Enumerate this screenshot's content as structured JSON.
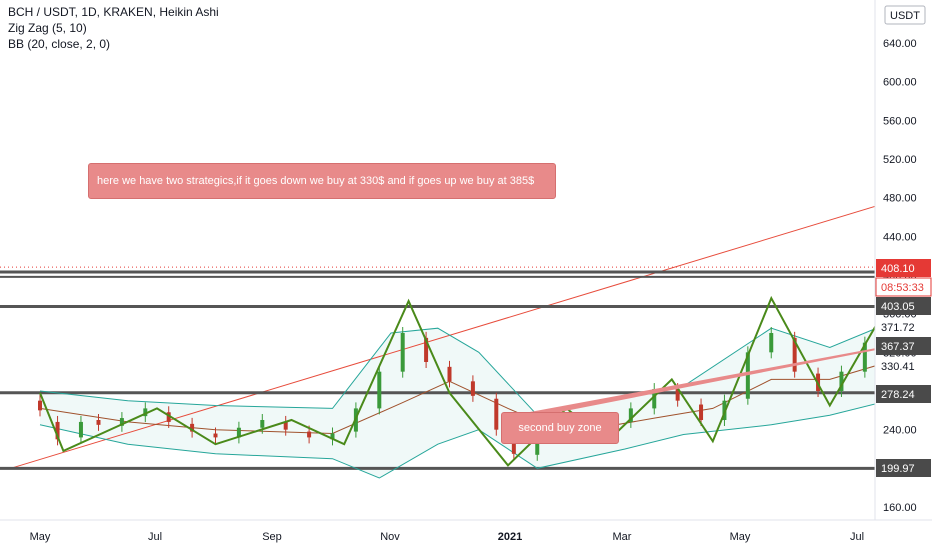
{
  "legend": {
    "line1": "BCH / USDT, 1D, KRAKEN, Heikin Ashi",
    "line2": "Zig Zag (5, 10)",
    "line3": "BB (20, close, 2, 0)"
  },
  "currency_badge": "USDT",
  "annotations": {
    "strategy_note": "here we have two strategics,if it goes down we buy at 330$ and if goes up we buy at 385$",
    "second_buy": "second buy zone"
  },
  "colors": {
    "candle_up": "#3a9a3a",
    "candle_down": "#c0392b",
    "zigzag": "#4a8a1a",
    "bb_band": "#26a69a",
    "bb_basis": "#a0522d",
    "fork_median": "#e74c3c",
    "fork_green": "#4caf50",
    "fork_blue": "#2196f3",
    "projection": "#1e8fbf",
    "support": "#555555",
    "price_badge": "#e53935"
  },
  "chart_data": {
    "type": "candlestick",
    "symbol": "BCH / USDT",
    "interval": "1D",
    "exchange": "KRAKEN",
    "style": "Heikin Ashi",
    "y_range": [
      150,
      650
    ],
    "x_labels": [
      "May",
      "Jul",
      "Sep",
      "Nov",
      "2021",
      "Mar",
      "May",
      "Jul"
    ],
    "y_ticks": [
      160,
      200,
      240,
      280,
      320,
      360,
      400,
      440,
      480,
      520,
      560,
      600,
      640
    ],
    "support_levels": [
      199.97,
      278.24,
      367.37,
      403.05
    ],
    "price_badges": [
      {
        "label": "408.10",
        "value": 408.1,
        "kind": "last"
      },
      {
        "label": "08:53:33",
        "value": 399.0,
        "kind": "timer"
      },
      {
        "label": "403.05",
        "value": 403.05,
        "kind": "line"
      },
      {
        "label": "371.72",
        "value": 371.72,
        "kind": "plain"
      },
      {
        "label": "367.37",
        "value": 367.37,
        "kind": "line"
      },
      {
        "label": "330.41",
        "value": 330.41,
        "kind": "plain"
      },
      {
        "label": "278.24",
        "value": 278.24,
        "kind": "line"
      },
      {
        "label": "199.97",
        "value": 199.97,
        "kind": "line"
      }
    ],
    "zigzag": [
      {
        "t": 0.0,
        "v": 278
      },
      {
        "t": 0.4,
        "v": 218
      },
      {
        "t": 2.0,
        "v": 262
      },
      {
        "t": 3.0,
        "v": 225
      },
      {
        "t": 4.3,
        "v": 250
      },
      {
        "t": 5.2,
        "v": 225
      },
      {
        "t": 6.3,
        "v": 373
      },
      {
        "t": 7.0,
        "v": 278
      },
      {
        "t": 8.0,
        "v": 203
      },
      {
        "t": 9.0,
        "v": 262
      },
      {
        "t": 9.7,
        "v": 228
      },
      {
        "t": 10.8,
        "v": 292
      },
      {
        "t": 11.5,
        "v": 228
      },
      {
        "t": 12.5,
        "v": 376
      },
      {
        "t": 13.5,
        "v": 265
      },
      {
        "t": 14.5,
        "v": 370
      },
      {
        "t": 15.1,
        "v": 262
      },
      {
        "t": 16.1,
        "v": 635
      },
      {
        "t": 16.6,
        "v": 402
      }
    ],
    "candles": [
      {
        "t": 0.0,
        "o": 270,
        "c": 260
      },
      {
        "t": 0.3,
        "o": 248,
        "c": 230
      },
      {
        "t": 0.7,
        "o": 232,
        "c": 248
      },
      {
        "t": 1.0,
        "o": 250,
        "c": 245
      },
      {
        "t": 1.4,
        "o": 244,
        "c": 252
      },
      {
        "t": 1.8,
        "o": 254,
        "c": 262
      },
      {
        "t": 2.2,
        "o": 258,
        "c": 248
      },
      {
        "t": 2.6,
        "o": 246,
        "c": 238
      },
      {
        "t": 3.0,
        "o": 236,
        "c": 232
      },
      {
        "t": 3.4,
        "o": 232,
        "c": 242
      },
      {
        "t": 3.8,
        "o": 242,
        "c": 250
      },
      {
        "t": 4.2,
        "o": 248,
        "c": 240
      },
      {
        "t": 4.6,
        "o": 238,
        "c": 232
      },
      {
        "t": 5.0,
        "o": 230,
        "c": 236
      },
      {
        "t": 5.4,
        "o": 238,
        "c": 262
      },
      {
        "t": 5.8,
        "o": 262,
        "c": 300
      },
      {
        "t": 6.2,
        "o": 300,
        "c": 340
      },
      {
        "t": 6.6,
        "o": 335,
        "c": 310
      },
      {
        "t": 7.0,
        "o": 305,
        "c": 290
      },
      {
        "t": 7.4,
        "o": 290,
        "c": 275
      },
      {
        "t": 7.8,
        "o": 272,
        "c": 240
      },
      {
        "t": 8.1,
        "o": 238,
        "c": 215
      },
      {
        "t": 8.5,
        "o": 214,
        "c": 232
      },
      {
        "t": 8.9,
        "o": 232,
        "c": 248
      },
      {
        "t": 9.3,
        "o": 248,
        "c": 240
      },
      {
        "t": 9.7,
        "o": 240,
        "c": 246
      },
      {
        "t": 10.1,
        "o": 248,
        "c": 262
      },
      {
        "t": 10.5,
        "o": 262,
        "c": 282
      },
      {
        "t": 10.9,
        "o": 282,
        "c": 270
      },
      {
        "t": 11.3,
        "o": 266,
        "c": 250
      },
      {
        "t": 11.7,
        "o": 250,
        "c": 270
      },
      {
        "t": 12.1,
        "o": 272,
        "c": 320
      },
      {
        "t": 12.5,
        "o": 320,
        "c": 340
      },
      {
        "t": 12.9,
        "o": 335,
        "c": 300
      },
      {
        "t": 13.3,
        "o": 298,
        "c": 280
      },
      {
        "t": 13.7,
        "o": 280,
        "c": 300
      },
      {
        "t": 14.1,
        "o": 300,
        "c": 330
      },
      {
        "t": 14.5,
        "o": 332,
        "c": 345
      },
      {
        "t": 14.9,
        "o": 340,
        "c": 300
      },
      {
        "t": 15.3,
        "o": 298,
        "c": 330
      },
      {
        "t": 15.6,
        "o": 330,
        "c": 380
      },
      {
        "t": 15.9,
        "o": 380,
        "c": 560
      },
      {
        "t": 16.1,
        "o": 560,
        "c": 510
      },
      {
        "t": 16.3,
        "o": 505,
        "c": 560
      },
      {
        "t": 16.5,
        "o": 540,
        "c": 470
      },
      {
        "t": 16.7,
        "o": 470,
        "c": 430
      },
      {
        "t": 16.9,
        "o": 428,
        "c": 405
      }
    ],
    "bb_upper": [
      {
        "t": 0.0,
        "v": 280
      },
      {
        "t": 1.5,
        "v": 270
      },
      {
        "t": 3.0,
        "v": 265
      },
      {
        "t": 5.0,
        "v": 262
      },
      {
        "t": 6.0,
        "v": 340
      },
      {
        "t": 6.8,
        "v": 345
      },
      {
        "t": 7.5,
        "v": 320
      },
      {
        "t": 8.5,
        "v": 255
      },
      {
        "t": 10.0,
        "v": 275
      },
      {
        "t": 11.0,
        "v": 285
      },
      {
        "t": 12.5,
        "v": 345
      },
      {
        "t": 13.5,
        "v": 325
      },
      {
        "t": 14.5,
        "v": 350
      },
      {
        "t": 15.3,
        "v": 360
      },
      {
        "t": 15.8,
        "v": 500
      },
      {
        "t": 16.2,
        "v": 660
      },
      {
        "t": 16.6,
        "v": 610
      },
      {
        "t": 17.0,
        "v": 540
      }
    ],
    "bb_lower": [
      {
        "t": 0.0,
        "v": 245
      },
      {
        "t": 1.5,
        "v": 225
      },
      {
        "t": 3.0,
        "v": 215
      },
      {
        "t": 5.0,
        "v": 210
      },
      {
        "t": 5.8,
        "v": 190
      },
      {
        "t": 6.8,
        "v": 225
      },
      {
        "t": 7.5,
        "v": 240
      },
      {
        "t": 8.5,
        "v": 200
      },
      {
        "t": 10.0,
        "v": 220
      },
      {
        "t": 11.0,
        "v": 235
      },
      {
        "t": 12.5,
        "v": 245
      },
      {
        "t": 13.5,
        "v": 255
      },
      {
        "t": 14.5,
        "v": 270
      },
      {
        "t": 15.3,
        "v": 250
      },
      {
        "t": 15.8,
        "v": 232
      },
      {
        "t": 16.2,
        "v": 280
      },
      {
        "t": 16.6,
        "v": 330
      },
      {
        "t": 17.0,
        "v": 390
      }
    ],
    "bb_basis": [
      {
        "t": 0.0,
        "v": 262
      },
      {
        "t": 1.5,
        "v": 248
      },
      {
        "t": 3.0,
        "v": 240
      },
      {
        "t": 5.0,
        "v": 236
      },
      {
        "t": 6.2,
        "v": 268
      },
      {
        "t": 7.0,
        "v": 290
      },
      {
        "t": 8.0,
        "v": 262
      },
      {
        "t": 9.0,
        "v": 236
      },
      {
        "t": 10.5,
        "v": 252
      },
      {
        "t": 11.5,
        "v": 262
      },
      {
        "t": 12.5,
        "v": 292
      },
      {
        "t": 13.5,
        "v": 292
      },
      {
        "t": 14.5,
        "v": 310
      },
      {
        "t": 15.3,
        "v": 315
      },
      {
        "t": 15.8,
        "v": 360
      },
      {
        "t": 16.3,
        "v": 480
      },
      {
        "t": 16.8,
        "v": 460
      }
    ],
    "trendline": [
      {
        "t": -0.5,
        "v": 200
      },
      {
        "t": 16.4,
        "v": 510
      }
    ],
    "pitchfork": {
      "median": [
        {
          "t": 16.0,
          "v": 640
        },
        {
          "t": 26.0,
          "v": 880
        }
      ],
      "upper_outer": [
        {
          "t": 16.1,
          "v": 640
        },
        {
          "t": 26.0,
          "v": 1100
        }
      ],
      "upper_inner": [
        {
          "t": 16.1,
          "v": 560
        },
        {
          "t": 26.0,
          "v": 990
        }
      ],
      "lower_inner": [
        {
          "t": 16.6,
          "v": 480
        },
        {
          "t": 26.0,
          "v": 680
        }
      ],
      "lower_outer": [
        {
          "t": 16.7,
          "v": 390
        },
        {
          "t": 26.0,
          "v": 590
        }
      ]
    },
    "projection_up": [
      {
        "t": 16.7,
        "v": 398
      },
      {
        "t": 17.8,
        "v": 470
      },
      {
        "t": 18.6,
        "v": 555
      },
      {
        "t": 19.6,
        "v": 500
      },
      {
        "t": 21.0,
        "v": 690
      }
    ],
    "projection_down": [
      {
        "t": 16.7,
        "v": 398
      },
      {
        "t": 17.3,
        "v": 367
      }
    ],
    "buy_zones": [
      {
        "t": 16.9,
        "v": 400
      },
      {
        "t": 17.5,
        "v": 360
      }
    ]
  }
}
